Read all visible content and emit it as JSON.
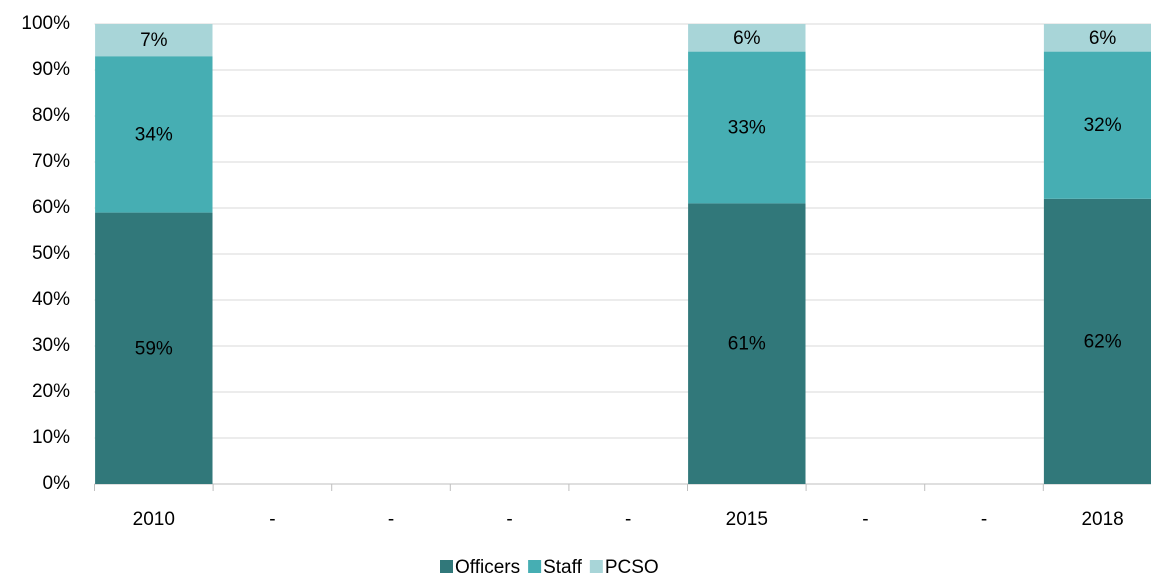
{
  "chart_data": {
    "type": "stacked_bar",
    "categories": [
      "2010",
      "-",
      "-",
      "-",
      "-",
      "2015",
      "-",
      "-",
      "2018"
    ],
    "series": [
      {
        "name": "Officers",
        "color": "#31787a",
        "values": [
          59,
          null,
          null,
          null,
          null,
          61,
          null,
          null,
          62
        ],
        "value_labels": [
          "59%",
          null,
          null,
          null,
          null,
          "61%",
          null,
          null,
          "62%"
        ]
      },
      {
        "name": "Staff",
        "color": "#46aeb3",
        "values": [
          34,
          null,
          null,
          null,
          null,
          33,
          null,
          null,
          32
        ],
        "value_labels": [
          "34%",
          null,
          null,
          null,
          null,
          "33%",
          null,
          null,
          "32%"
        ]
      },
      {
        "name": "PCSO",
        "color": "#a8d5d8",
        "values": [
          7,
          null,
          null,
          null,
          null,
          6,
          null,
          null,
          6
        ],
        "value_labels": [
          "7%",
          null,
          null,
          null,
          null,
          "6%",
          null,
          null,
          "6%"
        ]
      }
    ],
    "ylim": [
      0,
      100
    ],
    "yticks": [
      {
        "value": 0,
        "label": "0%"
      },
      {
        "value": 10,
        "label": "10%"
      },
      {
        "value": 20,
        "label": "20%"
      },
      {
        "value": 30,
        "label": "30%"
      },
      {
        "value": 40,
        "label": "40%"
      },
      {
        "value": 50,
        "label": "50%"
      },
      {
        "value": 60,
        "label": "60%"
      },
      {
        "value": 70,
        "label": "70%"
      },
      {
        "value": 80,
        "label": "80%"
      },
      {
        "value": 90,
        "label": "90%"
      },
      {
        "value": 100,
        "label": "100%"
      }
    ],
    "grid": true,
    "legend": "bottom"
  }
}
